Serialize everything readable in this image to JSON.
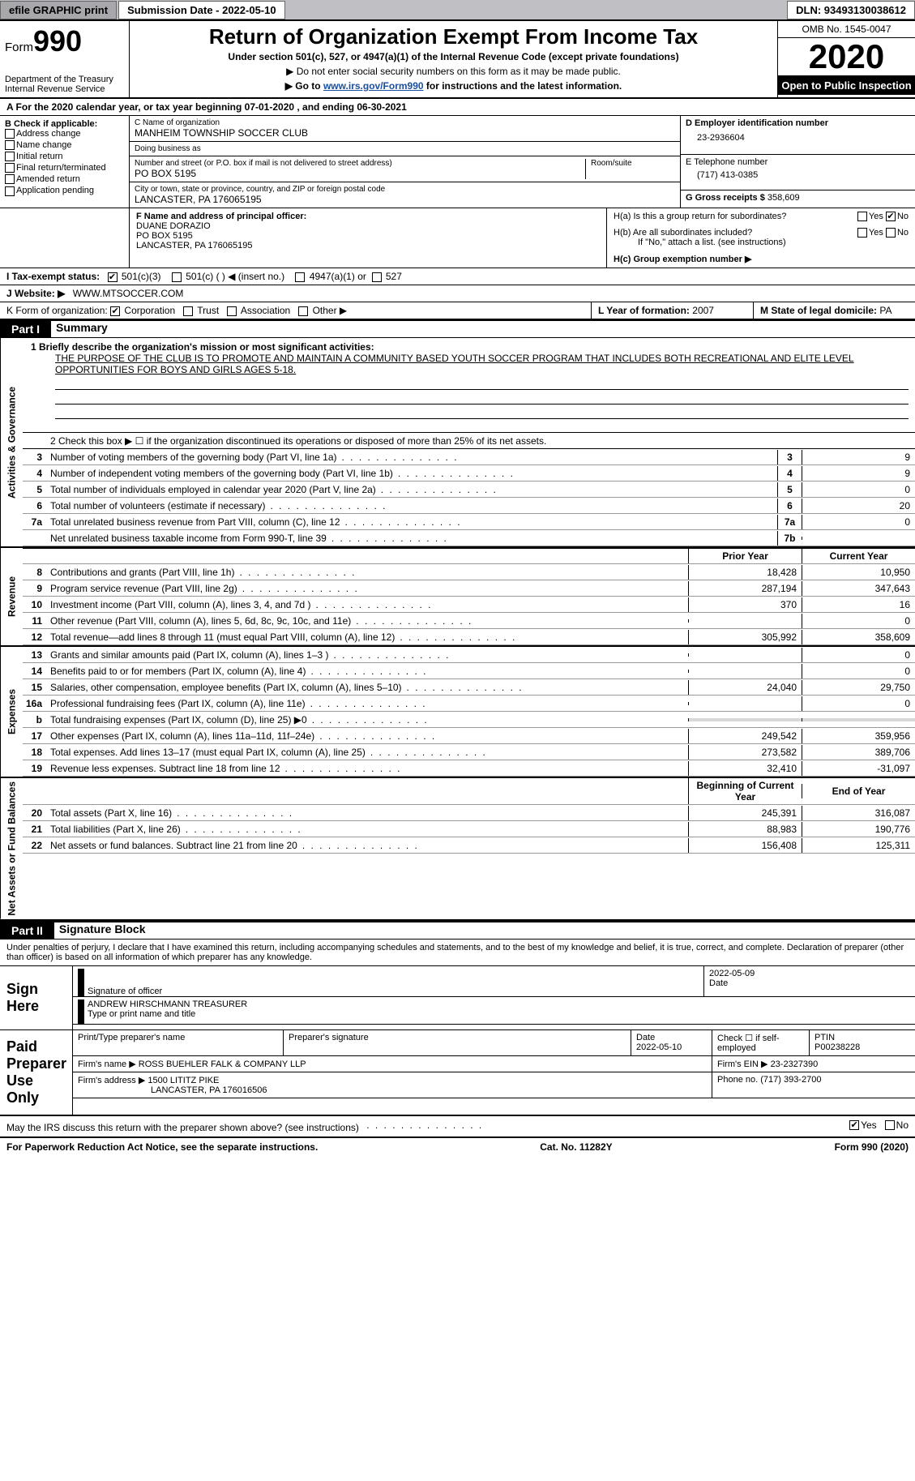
{
  "colors": {
    "topbar_bg": "#c0c0c4",
    "black": "#000000",
    "white": "#ffffff",
    "link": "#1a4fa0",
    "gray_fill": "#d8d8d8"
  },
  "topbar": {
    "efile_btn": "efile GRAPHIC print",
    "submission": "Submission Date - 2022-05-10",
    "dln": "DLN: 93493130038612"
  },
  "header": {
    "form_label": "Form",
    "form_number": "990",
    "dept": "Department of the Treasury",
    "irs": "Internal Revenue Service",
    "title": "Return of Organization Exempt From Income Tax",
    "subtitle": "Under section 501(c), 527, or 4947(a)(1) of the Internal Revenue Code (except private foundations)",
    "note1": "▶ Do not enter social security numbers on this form as it may be made public.",
    "note2_pre": "▶ Go to ",
    "note2_link": "www.irs.gov/Form990",
    "note2_post": " for instructions and the latest information.",
    "omb": "OMB No. 1545-0047",
    "year": "2020",
    "inspect": "Open to Public Inspection"
  },
  "period": "A For the 2020 calendar year, or tax year beginning 07-01-2020   , and ending 06-30-2021",
  "blockB": {
    "lead": "B Check if applicable:",
    "items": [
      "Address change",
      "Name change",
      "Initial return",
      "Final return/terminated",
      "Amended return",
      "Application pending"
    ]
  },
  "blockC": {
    "name_lbl": "C Name of organization",
    "name": "MANHEIM TOWNSHIP SOCCER CLUB",
    "dba_lbl": "Doing business as",
    "dba": "",
    "addr_lbl": "Number and street (or P.O. box if mail is not delivered to street address)",
    "room_lbl": "Room/suite",
    "addr": "PO BOX 5195",
    "city_lbl": "City or town, state or province, country, and ZIP or foreign postal code",
    "city": "LANCASTER, PA  176065195"
  },
  "blockD": {
    "lbl": "D Employer identification number",
    "val": "23-2936604"
  },
  "blockE": {
    "lbl": "E Telephone number",
    "val": "(717) 413-0385"
  },
  "blockG": {
    "lbl": "G Gross receipts $",
    "val": "358,609"
  },
  "blockF": {
    "lbl": "F Name and address of principal officer:",
    "name": "DUANE DORAZIO",
    "addr1": "PO BOX 5195",
    "addr2": "LANCASTER, PA  176065195"
  },
  "blockH": {
    "a": "H(a)  Is this a group return for subordinates?",
    "a_yes": "Yes",
    "a_no": "No",
    "b": "H(b)  Are all subordinates included?",
    "b_note": "If \"No,\" attach a list. (see instructions)",
    "c": "H(c)  Group exemption number ▶"
  },
  "lineI": {
    "lead": "I  Tax-exempt status:",
    "opts": [
      "501(c)(3)",
      "501(c) (  ) ◀ (insert no.)",
      "4947(a)(1) or",
      "527"
    ]
  },
  "lineJ": {
    "lead": "J  Website: ▶",
    "val": "WWW.MTSOCCER.COM"
  },
  "lineK": {
    "lead": "K Form of organization:",
    "opts": [
      "Corporation",
      "Trust",
      "Association",
      "Other ▶"
    ]
  },
  "lineL": {
    "lbl": "L Year of formation:",
    "val": "2007"
  },
  "lineM": {
    "lbl": "M State of legal domicile:",
    "val": "PA"
  },
  "part1": {
    "hdr": "Part I",
    "title": "Summary",
    "q1_lead": "1  Briefly describe the organization's mission or most significant activities:",
    "q1_text": "THE PURPOSE OF THE CLUB IS TO PROMOTE AND MAINTAIN A COMMUNITY BASED YOUTH SOCCER PROGRAM THAT INCLUDES BOTH RECREATIONAL AND ELITE LEVEL OPPORTUNITIES FOR BOYS AND GIRLS AGES 5-18.",
    "q2": "2  Check this box ▶ ☐  if the organization discontinued its operations or disposed of more than 25% of its net assets.",
    "sections": [
      {
        "side": "Activities & Governance",
        "rows": [
          {
            "n": "3",
            "d": "Number of voting members of the governing body (Part VI, line 1a)",
            "box": "3",
            "v2": "9"
          },
          {
            "n": "4",
            "d": "Number of independent voting members of the governing body (Part VI, line 1b)",
            "box": "4",
            "v2": "9"
          },
          {
            "n": "5",
            "d": "Total number of individuals employed in calendar year 2020 (Part V, line 2a)",
            "box": "5",
            "v2": "0"
          },
          {
            "n": "6",
            "d": "Total number of volunteers (estimate if necessary)",
            "box": "6",
            "v2": "20"
          },
          {
            "n": "7a",
            "d": "Total unrelated business revenue from Part VIII, column (C), line 12",
            "box": "7a",
            "v2": "0"
          },
          {
            "n": "",
            "d": "Net unrelated business taxable income from Form 990-T, line 39",
            "box": "7b",
            "v2": ""
          }
        ]
      },
      {
        "side": "Revenue",
        "hdr": {
          "v1": "Prior Year",
          "v2": "Current Year"
        },
        "rows": [
          {
            "n": "b",
            "d": "",
            "box": "",
            "v1": "",
            "v2": "",
            "gray": true,
            "hide": true
          },
          {
            "n": "8",
            "d": "Contributions and grants (Part VIII, line 1h)",
            "v1": "18,428",
            "v2": "10,950"
          },
          {
            "n": "9",
            "d": "Program service revenue (Part VIII, line 2g)",
            "v1": "287,194",
            "v2": "347,643"
          },
          {
            "n": "10",
            "d": "Investment income (Part VIII, column (A), lines 3, 4, and 7d )",
            "v1": "370",
            "v2": "16"
          },
          {
            "n": "11",
            "d": "Other revenue (Part VIII, column (A), lines 5, 6d, 8c, 9c, 10c, and 11e)",
            "v1": "",
            "v2": "0"
          },
          {
            "n": "12",
            "d": "Total revenue—add lines 8 through 11 (must equal Part VIII, column (A), line 12)",
            "v1": "305,992",
            "v2": "358,609"
          }
        ]
      },
      {
        "side": "Expenses",
        "rows": [
          {
            "n": "13",
            "d": "Grants and similar amounts paid (Part IX, column (A), lines 1–3 )",
            "v1": "",
            "v2": "0"
          },
          {
            "n": "14",
            "d": "Benefits paid to or for members (Part IX, column (A), line 4)",
            "v1": "",
            "v2": "0"
          },
          {
            "n": "15",
            "d": "Salaries, other compensation, employee benefits (Part IX, column (A), lines 5–10)",
            "v1": "24,040",
            "v2": "29,750"
          },
          {
            "n": "16a",
            "d": "Professional fundraising fees (Part IX, column (A), line 11e)",
            "v1": "",
            "v2": "0"
          },
          {
            "n": "b",
            "d": "Total fundraising expenses (Part IX, column (D), line 25) ▶0",
            "v1gray": true,
            "v2gray": true
          },
          {
            "n": "17",
            "d": "Other expenses (Part IX, column (A), lines 11a–11d, 11f–24e)",
            "v1": "249,542",
            "v2": "359,956"
          },
          {
            "n": "18",
            "d": "Total expenses. Add lines 13–17 (must equal Part IX, column (A), line 25)",
            "v1": "273,582",
            "v2": "389,706"
          },
          {
            "n": "19",
            "d": "Revenue less expenses. Subtract line 18 from line 12",
            "v1": "32,410",
            "v2": "-31,097"
          }
        ]
      },
      {
        "side": "Net Assets or Fund Balances",
        "hdr": {
          "v1": "Beginning of Current Year",
          "v2": "End of Year"
        },
        "rows": [
          {
            "n": "20",
            "d": "Total assets (Part X, line 16)",
            "v1": "245,391",
            "v2": "316,087"
          },
          {
            "n": "21",
            "d": "Total liabilities (Part X, line 26)",
            "v1": "88,983",
            "v2": "190,776"
          },
          {
            "n": "22",
            "d": "Net assets or fund balances. Subtract line 21 from line 20",
            "v1": "156,408",
            "v2": "125,311"
          }
        ]
      }
    ]
  },
  "part2": {
    "hdr": "Part II",
    "title": "Signature Block",
    "decl": "Under penalties of perjury, I declare that I have examined this return, including accompanying schedules and statements, and to the best of my knowledge and belief, it is true, correct, and complete. Declaration of preparer (other than officer) is based on all information of which preparer has any knowledge.",
    "sign_here": "Sign Here",
    "sig_officer_lbl": "Signature of officer",
    "sig_date": "2022-05-09",
    "date_lbl": "Date",
    "officer_name": "ANDREW HIRSCHMANN TREASURER",
    "officer_name_lbl": "Type or print name and title",
    "paid_hdr": "Paid Preparer Use Only",
    "prep_name_lbl": "Print/Type preparer's name",
    "prep_sig_lbl": "Preparer's signature",
    "prep_date_lbl": "Date",
    "prep_date": "2022-05-10",
    "prep_self_lbl": "Check ☐ if self-employed",
    "ptin_lbl": "PTIN",
    "ptin": "P00238228",
    "firm_name_lbl": "Firm's name    ▶",
    "firm_name": "ROSS BUEHLER FALK & COMPANY LLP",
    "firm_ein_lbl": "Firm's EIN ▶",
    "firm_ein": "23-2327390",
    "firm_addr_lbl": "Firm's address ▶",
    "firm_addr1": "1500 LITITZ PIKE",
    "firm_addr2": "LANCASTER, PA  176016506",
    "firm_phone_lbl": "Phone no.",
    "firm_phone": "(717) 393-2700",
    "discuss": "May the IRS discuss this return with the preparer shown above? (see instructions)",
    "discuss_yes": "Yes",
    "discuss_no": "No"
  },
  "footer": {
    "left": "For Paperwork Reduction Act Notice, see the separate instructions.",
    "mid": "Cat. No. 11282Y",
    "right": "Form 990 (2020)"
  }
}
